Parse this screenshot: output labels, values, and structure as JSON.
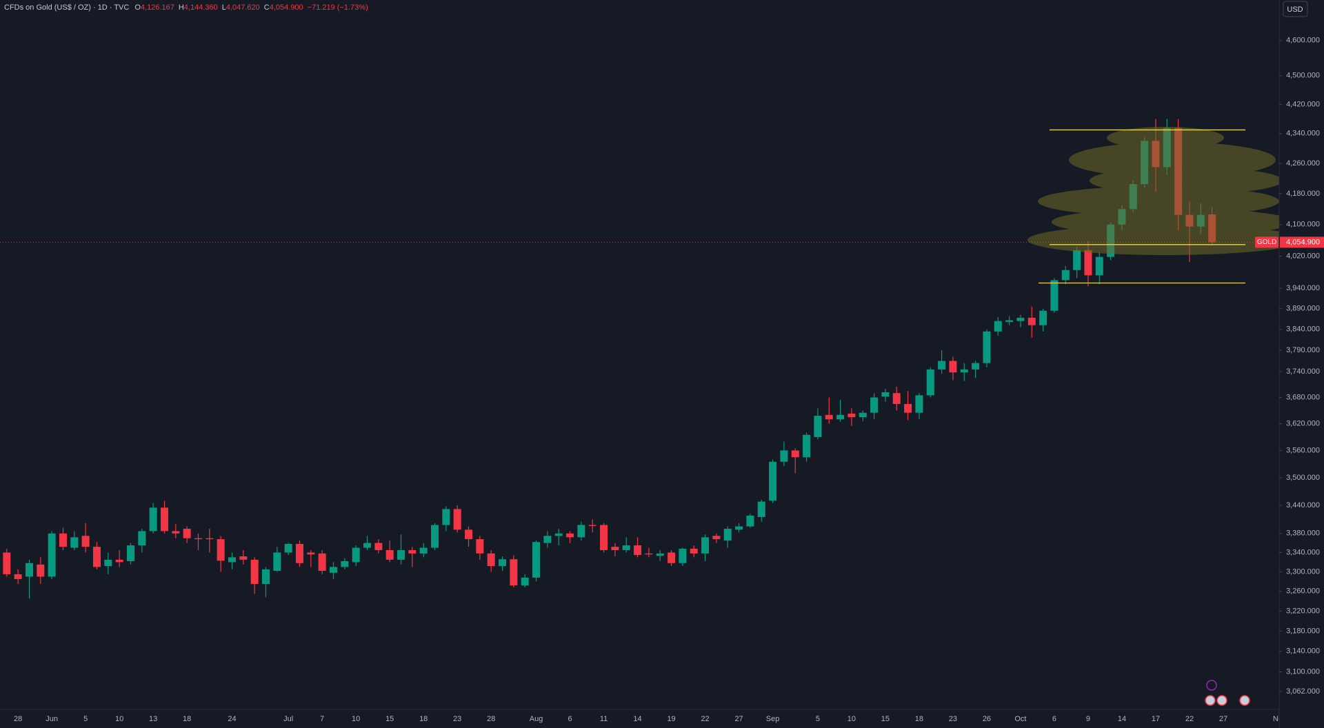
{
  "chart_data": {
    "type": "candlestick",
    "title": "CFDs on Gold (US$ / OZ) · 1D · TVC",
    "ohlc_header": [
      {
        "key": "O",
        "text": "4,126.167"
      },
      {
        "key": "H",
        "text": "4,144.360"
      },
      {
        "key": "L",
        "text": "4,047.620"
      },
      {
        "key": "C",
        "text": "4,054.900"
      }
    ],
    "change": "−71.219 (−1.73%)",
    "currency": "USD",
    "log_scale": true,
    "grid": false,
    "up_color": "#089981",
    "down_color": "#f23645",
    "ylim": [
      3028,
      4718
    ],
    "yticks": [
      {
        "value": 4600,
        "label": "4,600.000"
      },
      {
        "value": 4500,
        "label": "4,500.000"
      },
      {
        "value": 4420,
        "label": "4,420.000"
      },
      {
        "value": 4340,
        "label": "4,340.000"
      },
      {
        "value": 4260,
        "label": "4,260.000"
      },
      {
        "value": 4180,
        "label": "4,180.000"
      },
      {
        "value": 4100,
        "label": "4,100.000"
      },
      {
        "value": 4020,
        "label": "4,020.000"
      },
      {
        "value": 3940,
        "label": "3,940.000"
      },
      {
        "value": 3890,
        "label": "3,890.000"
      },
      {
        "value": 3840,
        "label": "3,840.000"
      },
      {
        "value": 3790,
        "label": "3,790.000"
      },
      {
        "value": 3740,
        "label": "3,740.000"
      },
      {
        "value": 3680,
        "label": "3,680.000"
      },
      {
        "value": 3620,
        "label": "3,620.000"
      },
      {
        "value": 3560,
        "label": "3,560.000"
      },
      {
        "value": 3500,
        "label": "3,500.000"
      },
      {
        "value": 3440,
        "label": "3,440.000"
      },
      {
        "value": 3380,
        "label": "3,380.000"
      },
      {
        "value": 3340,
        "label": "3,340.000"
      },
      {
        "value": 3300,
        "label": "3,300.000"
      },
      {
        "value": 3260,
        "label": "3,260.000"
      },
      {
        "value": 3220,
        "label": "3,220.000"
      },
      {
        "value": 3180,
        "label": "3,180.000"
      },
      {
        "value": 3140,
        "label": "3,140.000"
      },
      {
        "value": 3100,
        "label": "3,100.000"
      },
      {
        "value": 3062,
        "label": "3,062.000"
      }
    ],
    "categories": [
      null,
      "28",
      null,
      null,
      "Jun",
      null,
      null,
      "5",
      null,
      null,
      "10",
      null,
      null,
      "13",
      null,
      null,
      "18",
      null,
      null,
      null,
      "24",
      null,
      null,
      null,
      null,
      "Jul",
      null,
      null,
      "7",
      null,
      null,
      "10",
      null,
      null,
      "15",
      null,
      null,
      "18",
      null,
      null,
      "23",
      null,
      null,
      "28",
      null,
      null,
      null,
      "Aug",
      null,
      null,
      "6",
      null,
      null,
      "11",
      null,
      null,
      "14",
      null,
      null,
      "19",
      null,
      null,
      "22",
      null,
      null,
      "27",
      null,
      null,
      "Sep",
      null,
      null,
      null,
      "5",
      null,
      null,
      "10",
      null,
      null,
      "15",
      null,
      null,
      "18",
      null,
      null,
      "23",
      null,
      null,
      "26",
      null,
      null,
      "Oct",
      null,
      null,
      "6",
      null,
      null,
      "9",
      null,
      null,
      "14",
      null,
      null,
      "17",
      null,
      null,
      "22",
      null,
      null,
      "27",
      null,
      null,
      null,
      null,
      "Nov"
    ],
    "open": [
      3340,
      3295,
      3290,
      3315,
      3290,
      3380,
      3350,
      3375,
      3352,
      3312,
      3325,
      3322,
      3355,
      3385,
      3435,
      3385,
      3390,
      3370,
      3370,
      3368,
      3320,
      3332,
      3325,
      3275,
      3302,
      3340,
      3358,
      3340,
      3338,
      3298,
      3310,
      3320,
      3350,
      3360,
      3345,
      3325,
      3345,
      3338,
      3350,
      3398,
      3432,
      3388,
      3368,
      3338,
      3312,
      3326,
      3272,
      3288,
      3360,
      3375,
      3380,
      3372,
      3398,
      3398,
      3352,
      3345,
      3355,
      3338,
      3333,
      3340,
      3318,
      3348,
      3338,
      3375,
      3365,
      3388,
      3395,
      3415,
      3450,
      3535,
      3560,
      3545,
      3590,
      3640,
      3630,
      3643,
      3635,
      3645,
      3682,
      3690,
      3665,
      3645,
      3685,
      3745,
      3765,
      3738,
      3745,
      3760,
      3835,
      3858,
      3860,
      3868,
      3850,
      3885,
      3960,
      3985,
      4035,
      3972,
      4018,
      4100,
      4140,
      4205,
      4320,
      4250,
      4355,
      4125,
      4095,
      4126.167,
      null,
      null,
      null,
      null,
      null,
      null
    ],
    "high": [
      3348,
      3305,
      3325,
      3330,
      3385,
      3392,
      3385,
      3402,
      3362,
      3340,
      3345,
      3360,
      3390,
      3445,
      3450,
      3400,
      3395,
      3380,
      3390,
      3375,
      3340,
      3345,
      3330,
      3310,
      3352,
      3360,
      3365,
      3345,
      3345,
      3320,
      3328,
      3355,
      3375,
      3368,
      3365,
      3378,
      3352,
      3360,
      3402,
      3438,
      3440,
      3395,
      3375,
      3345,
      3332,
      3334,
      3295,
      3365,
      3385,
      3390,
      3385,
      3405,
      3410,
      3402,
      3360,
      3372,
      3372,
      3350,
      3345,
      3345,
      3350,
      3355,
      3378,
      3380,
      3395,
      3402,
      3422,
      3452,
      3540,
      3580,
      3565,
      3600,
      3655,
      3680,
      3675,
      3655,
      3650,
      3690,
      3700,
      3705,
      3695,
      3690,
      3750,
      3790,
      3775,
      3760,
      3765,
      3840,
      3870,
      3872,
      3875,
      3895,
      3890,
      3965,
      3995,
      4045,
      4058,
      4030,
      4105,
      4150,
      4215,
      4330,
      4380,
      4380,
      4380,
      4160,
      4155,
      4144.36,
      null,
      null,
      null,
      null,
      null,
      null
    ],
    "low": [
      3290,
      3275,
      3245,
      3275,
      3285,
      3345,
      3345,
      3340,
      3305,
      3295,
      3310,
      3315,
      3340,
      3380,
      3380,
      3370,
      3360,
      3345,
      3340,
      3300,
      3305,
      3315,
      3255,
      3248,
      3300,
      3335,
      3310,
      3310,
      3295,
      3285,
      3305,
      3312,
      3345,
      3338,
      3320,
      3315,
      3310,
      3330,
      3345,
      3385,
      3382,
      3352,
      3325,
      3300,
      3302,
      3268,
      3268,
      3280,
      3350,
      3355,
      3360,
      3365,
      3382,
      3340,
      3332,
      3340,
      3330,
      3330,
      3322,
      3312,
      3312,
      3330,
      3322,
      3360,
      3350,
      3382,
      3392,
      3405,
      3445,
      3525,
      3510,
      3535,
      3585,
      3620,
      3625,
      3615,
      3625,
      3630,
      3670,
      3650,
      3628,
      3630,
      3680,
      3735,
      3720,
      3718,
      3725,
      3750,
      3825,
      3850,
      3845,
      3820,
      3835,
      3880,
      3950,
      3965,
      3945,
      3950,
      4010,
      4085,
      4130,
      4195,
      4185,
      4230,
      4085,
      4005,
      4075,
      4047.62,
      null,
      null,
      null,
      null,
      null,
      null
    ],
    "close": [
      3295,
      3285,
      3318,
      3290,
      3380,
      3352,
      3372,
      3352,
      3310,
      3325,
      3320,
      3355,
      3385,
      3435,
      3385,
      3380,
      3370,
      3368,
      3368,
      3323,
      3330,
      3325,
      3275,
      3305,
      3340,
      3358,
      3318,
      3336,
      3302,
      3310,
      3322,
      3350,
      3360,
      3345,
      3325,
      3345,
      3338,
      3350,
      3398,
      3432,
      3388,
      3368,
      3338,
      3312,
      3326,
      3272,
      3288,
      3362,
      3375,
      3380,
      3372,
      3398,
      3396,
      3345,
      3345,
      3355,
      3335,
      3336,
      3338,
      3318,
      3348,
      3338,
      3372,
      3368,
      3390,
      3395,
      3418,
      3448,
      3535,
      3560,
      3545,
      3595,
      3638,
      3630,
      3640,
      3635,
      3645,
      3680,
      3692,
      3665,
      3645,
      3685,
      3745,
      3765,
      3738,
      3745,
      3760,
      3835,
      3860,
      3862,
      3868,
      3850,
      3885,
      3960,
      3985,
      4035,
      3972,
      4018,
      4100,
      4140,
      4205,
      4320,
      4250,
      4355,
      4125,
      4095,
      4125,
      4054.9,
      null,
      null,
      null,
      null,
      null,
      null
    ],
    "last_price": {
      "name": "GOLD",
      "value": 4054.9,
      "label": "4,054.900"
    },
    "hlines": {
      "values": [
        4350,
        4049,
        3953
      ],
      "color": "#e8d44d"
    }
  }
}
